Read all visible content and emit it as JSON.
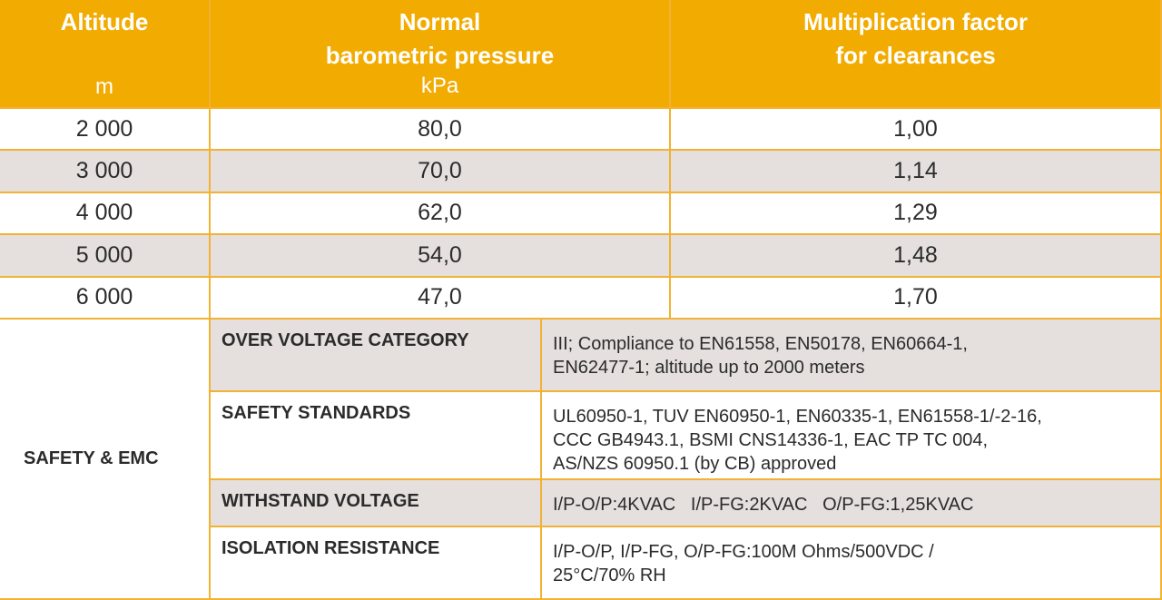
{
  "table": {
    "headers": [
      {
        "title_lines": [
          "Altitude"
        ],
        "unit": "m"
      },
      {
        "title_lines": [
          "Normal",
          "barometric pressure"
        ],
        "unit": "kPa"
      },
      {
        "title_lines": [
          "Multiplication factor",
          "for clearances"
        ]
      }
    ],
    "rows": [
      [
        "2 000",
        "80,0",
        "1,00"
      ],
      [
        "3 000",
        "70,0",
        "1,14"
      ],
      [
        "4 000",
        "62,0",
        "1,29"
      ],
      [
        "5 000",
        "54,0",
        "1,48"
      ],
      [
        "6 000",
        "47,0",
        "1,70"
      ]
    ]
  },
  "safety": {
    "section": "SAFETY & EMC",
    "rows": [
      {
        "label": "OVER VOLTAGE CATEGORY",
        "value_lines": [
          "III; Compliance to EN61558, EN50178, EN60664-1,",
          "EN62477-1; altitude up to 2000 meters"
        ]
      },
      {
        "label": "SAFETY STANDARDS",
        "value_lines": [
          "UL60950-1, TUV EN60950-1, EN60335-1, EN61558-1/-2-16,",
          "CCC GB4943.1, BSMI CNS14336-1, EAC TP TC 004,",
          "AS/NZS 60950.1 (by CB) approved"
        ]
      },
      {
        "label": "WITHSTAND VOLTAGE",
        "value_lines": [
          "I/P-O/P:4KVAC   I/P-FG:2KVAC   O/P-FG:1,25KVAC"
        ]
      },
      {
        "label": "ISOLATION RESISTANCE",
        "value_lines": [
          "I/P-O/P, I/P-FG, O/P-FG:100M Ohms/500VDC /",
          "25°C/70% RH"
        ]
      }
    ]
  }
}
